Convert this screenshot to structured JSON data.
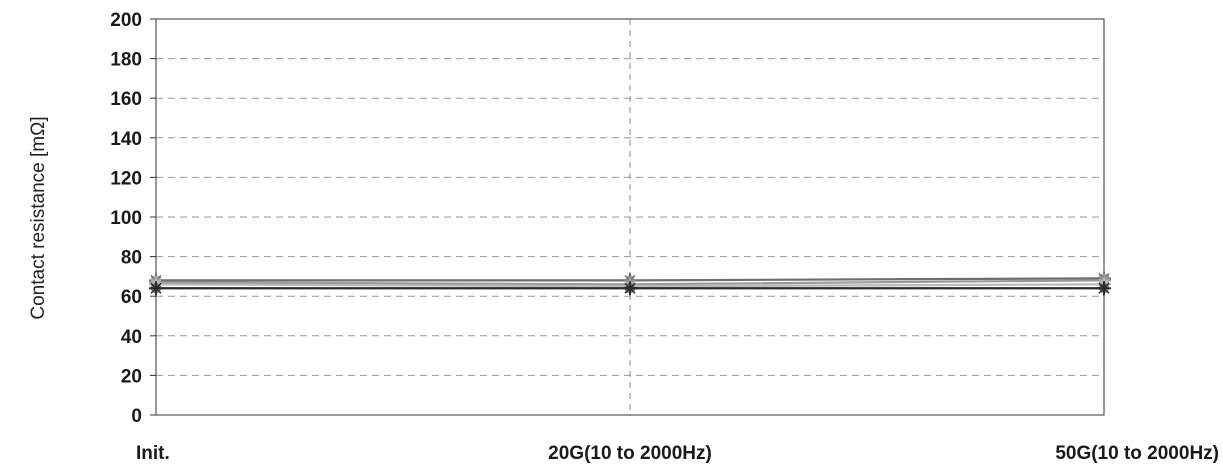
{
  "chart_data": {
    "type": "line",
    "ylabel": "Contact resistance [mΩ]",
    "xlabel": "",
    "categories": [
      "Init.",
      "20G(10 to 2000Hz)",
      "50G(10 to 2000Hz)"
    ],
    "ylim": [
      0,
      200
    ],
    "yticks": [
      0,
      20,
      40,
      60,
      80,
      100,
      120,
      140,
      160,
      180,
      200
    ],
    "grid": true,
    "series": [
      {
        "values": [
          68,
          68,
          69
        ],
        "color": "#6e6e6e"
      },
      {
        "values": [
          67,
          66,
          68
        ],
        "color": "#9a9a9a"
      },
      {
        "values": [
          66,
          65,
          66
        ],
        "color": "#b8b8b8"
      },
      {
        "values": [
          64,
          64,
          64
        ],
        "color": "#2a2a2a"
      }
    ]
  }
}
